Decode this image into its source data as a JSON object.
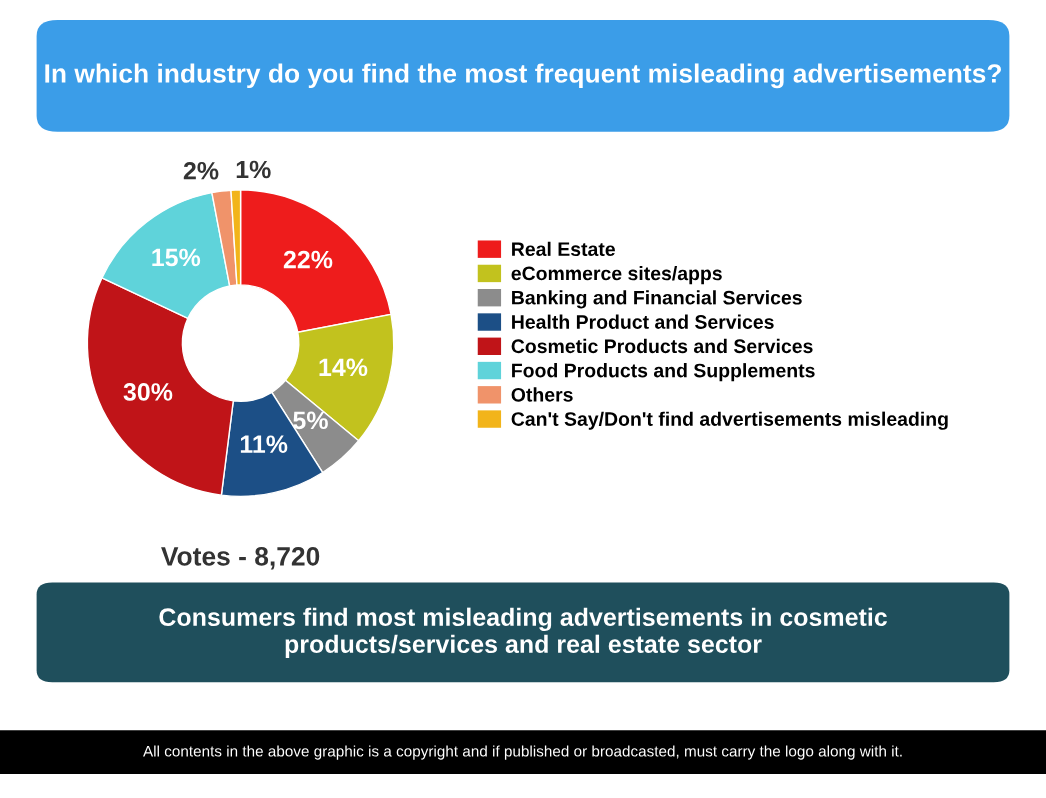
{
  "chart_data": {
    "type": "donut",
    "title": "In which industry do you find the most frequent misleading advertisements?",
    "categories": [
      "Real Estate",
      "eCommerce sites/apps",
      "Banking and Financial Services",
      "Health Product and Services",
      "Cosmetic Products and Services",
      "Food Products and Supplements",
      "Others",
      "Can't Say/Don't find advertisements misleading"
    ],
    "values": [
      22,
      14,
      5,
      11,
      30,
      15,
      2,
      1
    ],
    "colors": [
      "#ee1c1c",
      "#c2c21e",
      "#8c8c8c",
      "#1c4f86",
      "#c01418",
      "#5fd3da",
      "#f0936a",
      "#f2b41a"
    ],
    "value_labels": [
      "22%",
      "14%",
      "5%",
      "11%",
      "30%",
      "15%",
      "2%",
      "1%"
    ],
    "legend": "right",
    "annotations": [
      "Votes - 8,720",
      "Consumers find most misleading advertisements in cosmetic products/services and real estate sector",
      "All contents in the above graphic is a copyright and if published or broadcasted, must carry the logo along with it."
    ]
  }
}
